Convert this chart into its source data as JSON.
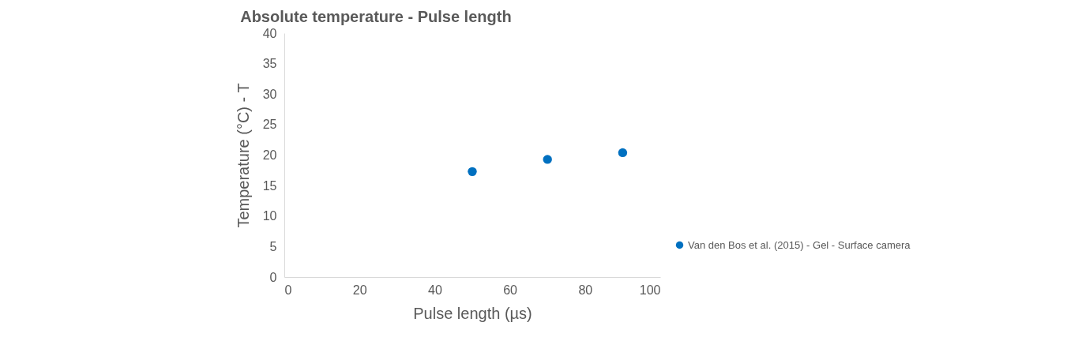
{
  "chart_data": {
    "type": "scatter",
    "title": "Absolute temperature - Pulse length",
    "xlabel": "Pulse length (µs)",
    "ylabel": "Temperature (°C) - T",
    "x": [
      50,
      70,
      90
    ],
    "series": [
      {
        "name": "Van den Bos et al. (2015) - Gel - Surface camera",
        "color": "#0070c0",
        "values": [
          17.3,
          19.3,
          20.4
        ]
      }
    ],
    "xlim": [
      0,
      100
    ],
    "xticks": [
      0,
      20,
      40,
      60,
      80,
      100
    ],
    "ylim": [
      0,
      40
    ],
    "yticks": [
      0,
      5,
      10,
      15,
      20,
      25,
      30,
      35,
      40
    ],
    "grid": false,
    "legend": "right",
    "marker": "circle"
  }
}
